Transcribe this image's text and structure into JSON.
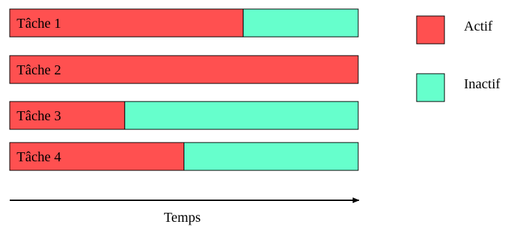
{
  "chart_data": {
    "type": "bar",
    "orientation": "horizontal",
    "stacked": true,
    "title": "",
    "xlabel": "Temps",
    "ylabel": "",
    "xlim": [
      0,
      1
    ],
    "grid": false,
    "legend_position": "right",
    "categories": [
      "Tâche 1",
      "Tâche 2",
      "Tâche 3",
      "Tâche 4"
    ],
    "series": [
      {
        "name": "Actif",
        "color": "#ff5050",
        "values": [
          0.67,
          1.0,
          0.33,
          0.5
        ]
      },
      {
        "name": "Inactif",
        "color": "#66ffcc",
        "values": [
          0.33,
          0.0,
          0.67,
          0.5
        ]
      }
    ]
  }
}
